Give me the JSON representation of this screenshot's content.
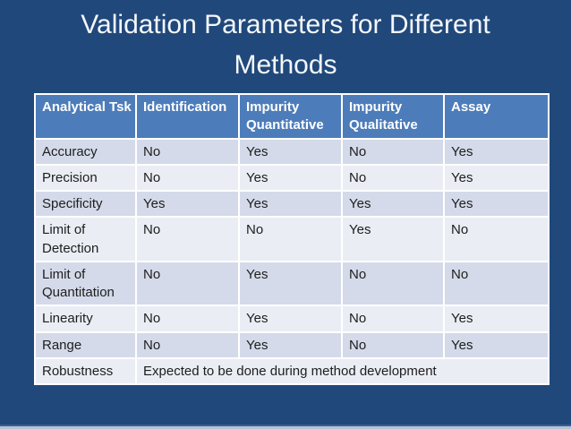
{
  "title": {
    "line1": "Validation Parameters for Different",
    "line2": "Methods"
  },
  "table": {
    "columns": [
      "Analytical Tsk",
      "Identification",
      "Impurity Quantitative",
      "Impurity Qualitative",
      "Assay"
    ],
    "rows": [
      {
        "label": "Accuracy",
        "values": [
          "No",
          "Yes",
          "No",
          "Yes"
        ]
      },
      {
        "label": "Precision",
        "values": [
          "No",
          "Yes",
          "No",
          "Yes"
        ]
      },
      {
        "label": "Specificity",
        "values": [
          "Yes",
          "Yes",
          "Yes",
          "Yes"
        ]
      },
      {
        "label": "Limit of Detection",
        "values": [
          "No",
          "No",
          "Yes",
          "No"
        ]
      },
      {
        "label": "Limit of Quantitation",
        "values": [
          "No",
          "Yes",
          "No",
          "No"
        ]
      },
      {
        "label": "Linearity",
        "values": [
          "No",
          "Yes",
          "No",
          "Yes"
        ]
      },
      {
        "label": "Range",
        "values": [
          "No",
          "Yes",
          "No",
          "Yes"
        ]
      }
    ],
    "footer_row": {
      "label": "Robustness",
      "note": "Expected to be done during method development"
    }
  },
  "colors": {
    "slide_background": "#20487a",
    "header_background": "#4d7cba",
    "header_text": "#ffffff",
    "row_shaded": "#d4dae9",
    "row_plain": "#eaedf4",
    "body_text": "#1e1e1e",
    "grid_line": "#ffffff",
    "title_text": "#f4f7fb",
    "bottom_strip_light": "#b6c3d7",
    "bottom_strip_medium": "#3c6090"
  }
}
